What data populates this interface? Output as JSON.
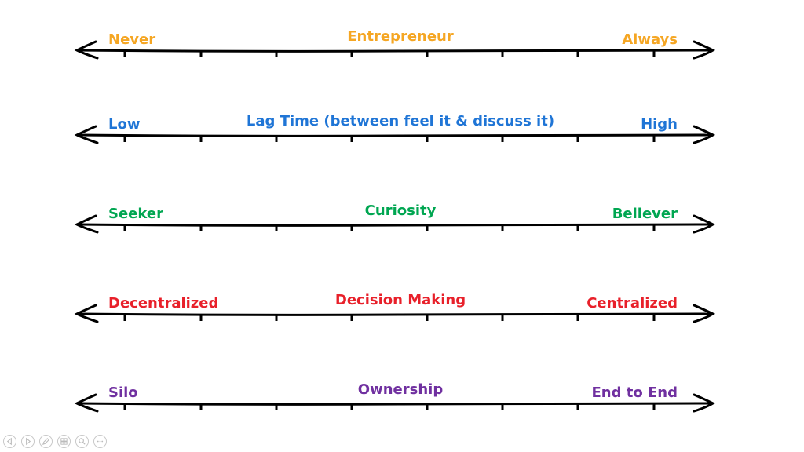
{
  "scales": [
    {
      "left": "Never",
      "center": "Entrepreneur",
      "right": "Always",
      "color": "#f5a623"
    },
    {
      "left": "Low",
      "center": "Lag Time (between feel it & discuss it)",
      "right": "High",
      "color": "#1f75d6"
    },
    {
      "left": "Seeker",
      "center": "Curiosity",
      "right": "Believer",
      "color": "#00a651"
    },
    {
      "left": "Decentralized",
      "center": "Decision Making",
      "right": "Centralized",
      "color": "#e8202a"
    },
    {
      "left": "Silo",
      "center": "Ownership",
      "right": "End to End",
      "color": "#7030a0"
    }
  ],
  "toolbar": {
    "buttons": [
      "previous-slide-icon",
      "next-slide-icon",
      "pen-icon",
      "slides-grid-icon",
      "zoom-icon",
      "more-options-icon"
    ]
  }
}
